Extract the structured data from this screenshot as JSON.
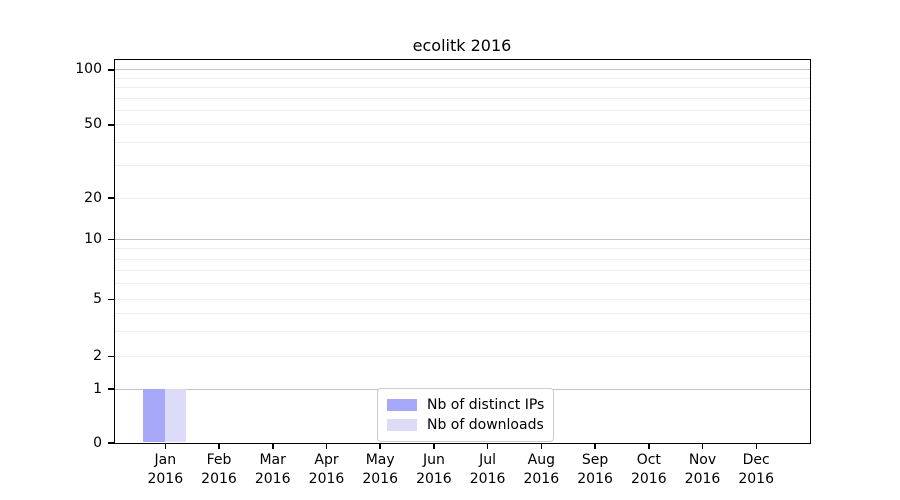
{
  "colors": {
    "distinct_ips": "#a8a8f8",
    "downloads": "#dcdcf9",
    "grid_major": "#c3c3c3",
    "grid_minor": "#ededed",
    "axis": "#000000",
    "legend_border": "#cccccc",
    "background": "#ffffff"
  },
  "chart_data": {
    "type": "bar",
    "title": "ecolitk 2016",
    "x_tick_months": [
      "Jan",
      "Feb",
      "Mar",
      "Apr",
      "May",
      "Jun",
      "Jul",
      "Aug",
      "Sep",
      "Oct",
      "Nov",
      "Dec"
    ],
    "x_tick_year": "2016",
    "categories": [
      "Jan 2016",
      "Feb 2016",
      "Mar 2016",
      "Apr 2016",
      "May 2016",
      "Jun 2016",
      "Jul 2016",
      "Aug 2016",
      "Sep 2016",
      "Oct 2016",
      "Nov 2016",
      "Dec 2016"
    ],
    "series": [
      {
        "name": "Nb of distinct IPs",
        "color": "#a8a8f8",
        "values": [
          1,
          0,
          0,
          0,
          0,
          0,
          0,
          0,
          0,
          0,
          0,
          0
        ]
      },
      {
        "name": "Nb of downloads",
        "color": "#dcdcf9",
        "values": [
          1,
          0,
          0,
          0,
          0,
          0,
          0,
          0,
          0,
          0,
          0,
          0
        ]
      }
    ],
    "y_axis": {
      "scale": "symlog",
      "ticks": [
        0,
        1,
        2,
        5,
        10,
        20,
        50,
        100
      ],
      "range": [
        0,
        116
      ],
      "grid": "horizontal"
    },
    "legend": {
      "position": "lower center"
    }
  }
}
